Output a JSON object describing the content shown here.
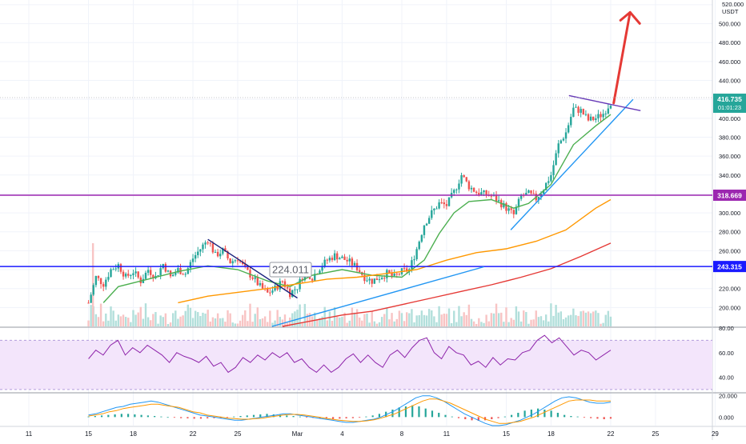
{
  "currency": "USDT",
  "current_price": {
    "value": "416.735",
    "countdown": "01:01:23"
  },
  "annotation_label": "224.011",
  "colors": {
    "candle_up": "#26a69a",
    "candle_down": "#ef5350",
    "ma_fast": "#4caf50",
    "ma_mid": "#ff9800",
    "ma_slow": "#e53935",
    "resistance_line": "#9c27b0",
    "support_line": "#1a1aff",
    "trend_blue": "#2196f3",
    "trend_navy": "#1a237e",
    "pennant": "#673ab7",
    "arrow": "#e53935",
    "rsi_line": "#8e24aa",
    "rsi_band": "#f3e5fb",
    "macd_line": "#2196f3",
    "signal_line": "#ff9800"
  },
  "chart_data": [
    {
      "type": "candlestick",
      "title": "",
      "ylabel": "USDT",
      "ylim": [
        180,
        525
      ],
      "y_ticks": [
        "200.000",
        "220.000",
        "240.000",
        "260.000",
        "280.000",
        "300.000",
        "320.000",
        "340.000",
        "360.000",
        "380.000",
        "400.000",
        "420.000",
        "440.000",
        "460.000",
        "480.000",
        "500.000",
        "520.000"
      ],
      "x_tick_labels": [
        {
          "label": "11",
          "day": 0
        },
        {
          "label": "15",
          "day": 4
        },
        {
          "label": "18",
          "day": 7
        },
        {
          "label": "22",
          "day": 11
        },
        {
          "label": "25",
          "day": 14
        },
        {
          "label": "Mar",
          "day": 18
        },
        {
          "label": "4",
          "day": 21
        },
        {
          "label": "8",
          "day": 25
        },
        {
          "label": "11",
          "day": 28
        },
        {
          "label": "15",
          "day": 32
        },
        {
          "label": "18",
          "day": 35
        },
        {
          "label": "22",
          "day": 39
        },
        {
          "label": "25",
          "day": 42
        },
        {
          "label": "29",
          "day": 46
        }
      ],
      "price_path": [
        [
          4.0,
          205
        ],
        [
          4.5,
          232
        ],
        [
          5.0,
          225
        ],
        [
          5.5,
          240
        ],
        [
          6.0,
          245
        ],
        [
          6.5,
          232
        ],
        [
          7.0,
          238
        ],
        [
          7.5,
          228
        ],
        [
          8.0,
          240
        ],
        [
          8.5,
          232
        ],
        [
          9.0,
          246
        ],
        [
          9.5,
          232
        ],
        [
          10.0,
          240
        ],
        [
          10.5,
          236
        ],
        [
          11.0,
          252
        ],
        [
          11.5,
          262
        ],
        [
          12.0,
          272
        ],
        [
          12.5,
          255
        ],
        [
          13.0,
          260
        ],
        [
          13.5,
          248
        ],
        [
          14.0,
          252
        ],
        [
          14.5,
          240
        ],
        [
          15.0,
          232
        ],
        [
          15.5,
          222
        ],
        [
          16.0,
          215
        ],
        [
          16.5,
          220
        ],
        [
          17.0,
          228
        ],
        [
          17.5,
          215
        ],
        [
          18.0,
          222
        ],
        [
          18.5,
          238
        ],
        [
          19.0,
          232
        ],
        [
          19.5,
          242
        ],
        [
          20.0,
          250
        ],
        [
          20.5,
          255
        ],
        [
          21.0,
          252
        ],
        [
          21.5,
          248
        ],
        [
          22.0,
          242
        ],
        [
          22.5,
          232
        ],
        [
          23.0,
          228
        ],
        [
          23.5,
          232
        ],
        [
          24.0,
          236
        ],
        [
          24.5,
          232
        ],
        [
          25.0,
          238
        ],
        [
          25.5,
          240
        ],
        [
          26.0,
          262
        ],
        [
          26.5,
          288
        ],
        [
          27.0,
          300
        ],
        [
          27.5,
          310
        ],
        [
          28.0,
          308
        ],
        [
          28.5,
          322
        ],
        [
          29.0,
          340
        ],
        [
          29.5,
          328
        ],
        [
          30.0,
          322
        ],
        [
          30.5,
          320
        ],
        [
          31.0,
          318
        ],
        [
          31.5,
          312
        ],
        [
          32.0,
          305
        ],
        [
          32.5,
          298
        ],
        [
          33.0,
          318
        ],
        [
          33.5,
          320
        ],
        [
          34.0,
          315
        ],
        [
          34.5,
          326
        ],
        [
          35.0,
          340
        ],
        [
          35.5,
          372
        ],
        [
          36.0,
          385
        ],
        [
          36.5,
          410
        ],
        [
          37.0,
          408
        ],
        [
          37.5,
          398
        ],
        [
          38.0,
          400
        ],
        [
          38.5,
          405
        ],
        [
          39.0,
          416.735
        ]
      ],
      "series": [
        {
          "name": "",
          "role": "ma_fast",
          "points": [
            [
              5,
              205
            ],
            [
              6,
              222
            ],
            [
              8,
              230
            ],
            [
              10,
              238
            ],
            [
              12,
              244
            ],
            [
              14,
              240
            ],
            [
              16,
              228
            ],
            [
              17.5,
              222
            ],
            [
              19,
              234
            ],
            [
              21,
              240
            ],
            [
              23,
              234
            ],
            [
              25,
              232
            ],
            [
              26.5,
              250
            ],
            [
              27.5,
              278
            ],
            [
              28.5,
              300
            ],
            [
              29.5,
              312
            ],
            [
              31,
              314
            ],
            [
              32.5,
              305
            ],
            [
              33.5,
              310
            ],
            [
              35,
              330
            ],
            [
              36.5,
              372
            ],
            [
              38,
              392
            ],
            [
              39,
              404
            ]
          ]
        },
        {
          "name": "",
          "role": "ma_mid",
          "points": [
            [
              10,
              205
            ],
            [
              12,
              212
            ],
            [
              14,
              216
            ],
            [
              16,
              220
            ],
            [
              18,
              225
            ],
            [
              20,
              230
            ],
            [
              22,
              232
            ],
            [
              24,
              236
            ],
            [
              26,
              240
            ],
            [
              28,
              250
            ],
            [
              30,
              258
            ],
            [
              32,
              262
            ],
            [
              34,
              270
            ],
            [
              36,
              282
            ],
            [
              38,
              305
            ],
            [
              39,
              314
            ]
          ]
        },
        {
          "name": "",
          "role": "ma_slow",
          "points": [
            [
              17,
              180
            ],
            [
              19,
              186
            ],
            [
              21,
              192
            ],
            [
              23,
              196
            ],
            [
              25,
              203
            ],
            [
              27,
              210
            ],
            [
              29,
              217
            ],
            [
              31,
              224
            ],
            [
              33,
              232
            ],
            [
              35,
              241
            ],
            [
              37,
              254
            ],
            [
              39,
              268
            ]
          ]
        }
      ],
      "horizontal_lines": [
        {
          "value": 318.669,
          "label": "318.669",
          "role": "resistance_line"
        },
        {
          "value": 243.315,
          "label": "243.315",
          "role": "support_line"
        }
      ],
      "drawings": [
        {
          "role": "trend_navy",
          "from": [
            12.0,
            272
          ],
          "to": [
            18.0,
            210
          ]
        },
        {
          "role": "trend_blue",
          "from": [
            16.3,
            180
          ],
          "to": [
            30.5,
            243
          ]
        },
        {
          "role": "trend_blue",
          "from": [
            32.3,
            282
          ],
          "to": [
            40.5,
            420
          ]
        },
        {
          "role": "pennant",
          "from": [
            36.2,
            424
          ],
          "to": [
            41.0,
            408
          ]
        }
      ],
      "arrow": {
        "from": [
          39.2,
          416
        ],
        "to": [
          40.3,
          512
        ]
      }
    },
    {
      "type": "line",
      "title": "",
      "ylim": [
        28,
        80
      ],
      "y_ticks": [
        "80.00",
        "60.00",
        "40.00"
      ],
      "band": [
        30,
        70
      ],
      "series": [
        {
          "name": "",
          "role": "rsi_line",
          "values": [
            55,
            62,
            58,
            66,
            70,
            58,
            64,
            60,
            66,
            62,
            58,
            52,
            60,
            57,
            55,
            52,
            57,
            49,
            52,
            44,
            48,
            56,
            52,
            58,
            54,
            60,
            56,
            60,
            52,
            55,
            48,
            44,
            50,
            44,
            48,
            55,
            59,
            52,
            58,
            52,
            48,
            58,
            62,
            56,
            64,
            70,
            72,
            60,
            55,
            65,
            60,
            58,
            50,
            53,
            48,
            56,
            50,
            55,
            54,
            60,
            62,
            70,
            74,
            68,
            72,
            65,
            58,
            62,
            60,
            54,
            58,
            62
          ]
        }
      ]
    },
    {
      "type": "bar",
      "title": "",
      "ylim": [
        -8,
        22
      ],
      "y_ticks": [
        "20.000",
        "0.000"
      ],
      "histogram": [
        0.5,
        1,
        1.5,
        2,
        2.5,
        3,
        3,
        2.5,
        2,
        1.5,
        1,
        0.5,
        0,
        -0.5,
        -1,
        -1.2,
        -1.5,
        -1.5,
        -1.2,
        -1,
        -0.8,
        -0.5,
        0.5,
        1,
        1.5,
        2,
        2.5,
        3,
        2.5,
        2,
        1.5,
        1,
        0.5,
        -0.3,
        -0.8,
        -1.2,
        -1.5,
        -1.8,
        -1.5,
        -1.2,
        -1,
        -0.5,
        0.5,
        1.5,
        3,
        5,
        7,
        9,
        10,
        11,
        10,
        8,
        6,
        4,
        2,
        0.5,
        -1,
        -2,
        -3,
        -3.5,
        -3,
        -2,
        -1,
        0.5,
        2,
        4,
        6,
        7,
        8,
        7,
        6,
        4,
        2,
        1,
        0.5,
        -0.5,
        -1,
        -1.5,
        -2,
        -1.5
      ],
      "series": [
        {
          "name": "",
          "role": "macd_line",
          "values": [
            2,
            3,
            5,
            7,
            9,
            10,
            12,
            13,
            14,
            15,
            14,
            12,
            10,
            8,
            6,
            4,
            2,
            1,
            0,
            -1,
            -2,
            -3,
            -3,
            -2,
            -1,
            0,
            1,
            2,
            3,
            3,
            2,
            1,
            0,
            -1,
            -2,
            -3,
            -4,
            -5,
            -5,
            -4,
            -3,
            -2,
            0,
            3,
            6,
            10,
            14,
            18,
            20,
            20,
            18,
            15,
            11,
            7,
            3,
            0,
            -3,
            -6,
            -8,
            -8,
            -7,
            -5,
            -3,
            0,
            3,
            7,
            11,
            15,
            18,
            19,
            18,
            16,
            14,
            13,
            13,
            14
          ]
        },
        {
          "name": "",
          "role": "signal_line",
          "values": [
            1,
            2,
            3,
            5,
            6,
            8,
            9,
            10,
            11,
            12,
            12,
            11,
            10,
            9,
            7,
            5,
            4,
            2,
            1,
            0,
            -1,
            -1.5,
            -2,
            -2,
            -1.5,
            -1,
            0,
            1,
            2,
            2.5,
            2.5,
            2,
            1,
            0,
            -1,
            -2,
            -3,
            -3.5,
            -4,
            -4,
            -3.5,
            -2.5,
            -1,
            1,
            3,
            6,
            9,
            12,
            15,
            17,
            17,
            15,
            13,
            10,
            7,
            4,
            1,
            -2,
            -4,
            -6,
            -6,
            -5,
            -4,
            -2,
            0,
            3,
            6,
            9,
            12,
            15,
            16,
            16,
            16,
            15,
            15,
            15
          ]
        }
      ]
    }
  ]
}
